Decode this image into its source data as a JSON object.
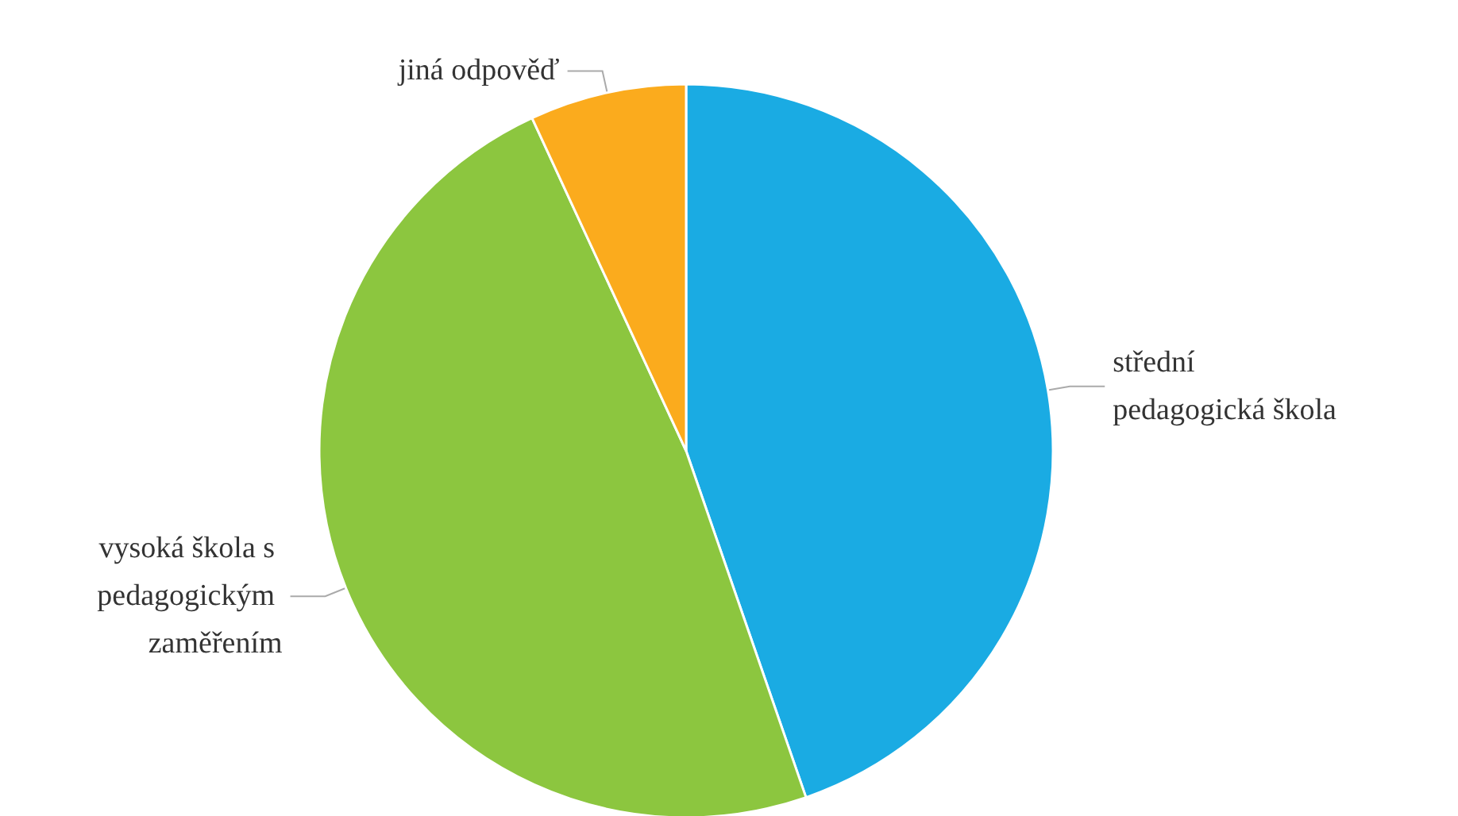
{
  "chart_data": {
    "type": "pie",
    "categories": [
      "střední pedagogická škola",
      "vysoká škola s pedagogickým zaměřením",
      "jiná odpověď"
    ],
    "values": [
      44.7,
      48.4,
      6.9
    ],
    "colors": [
      "#1aabe3",
      "#8cc63f",
      "#fbab1d"
    ]
  }
}
